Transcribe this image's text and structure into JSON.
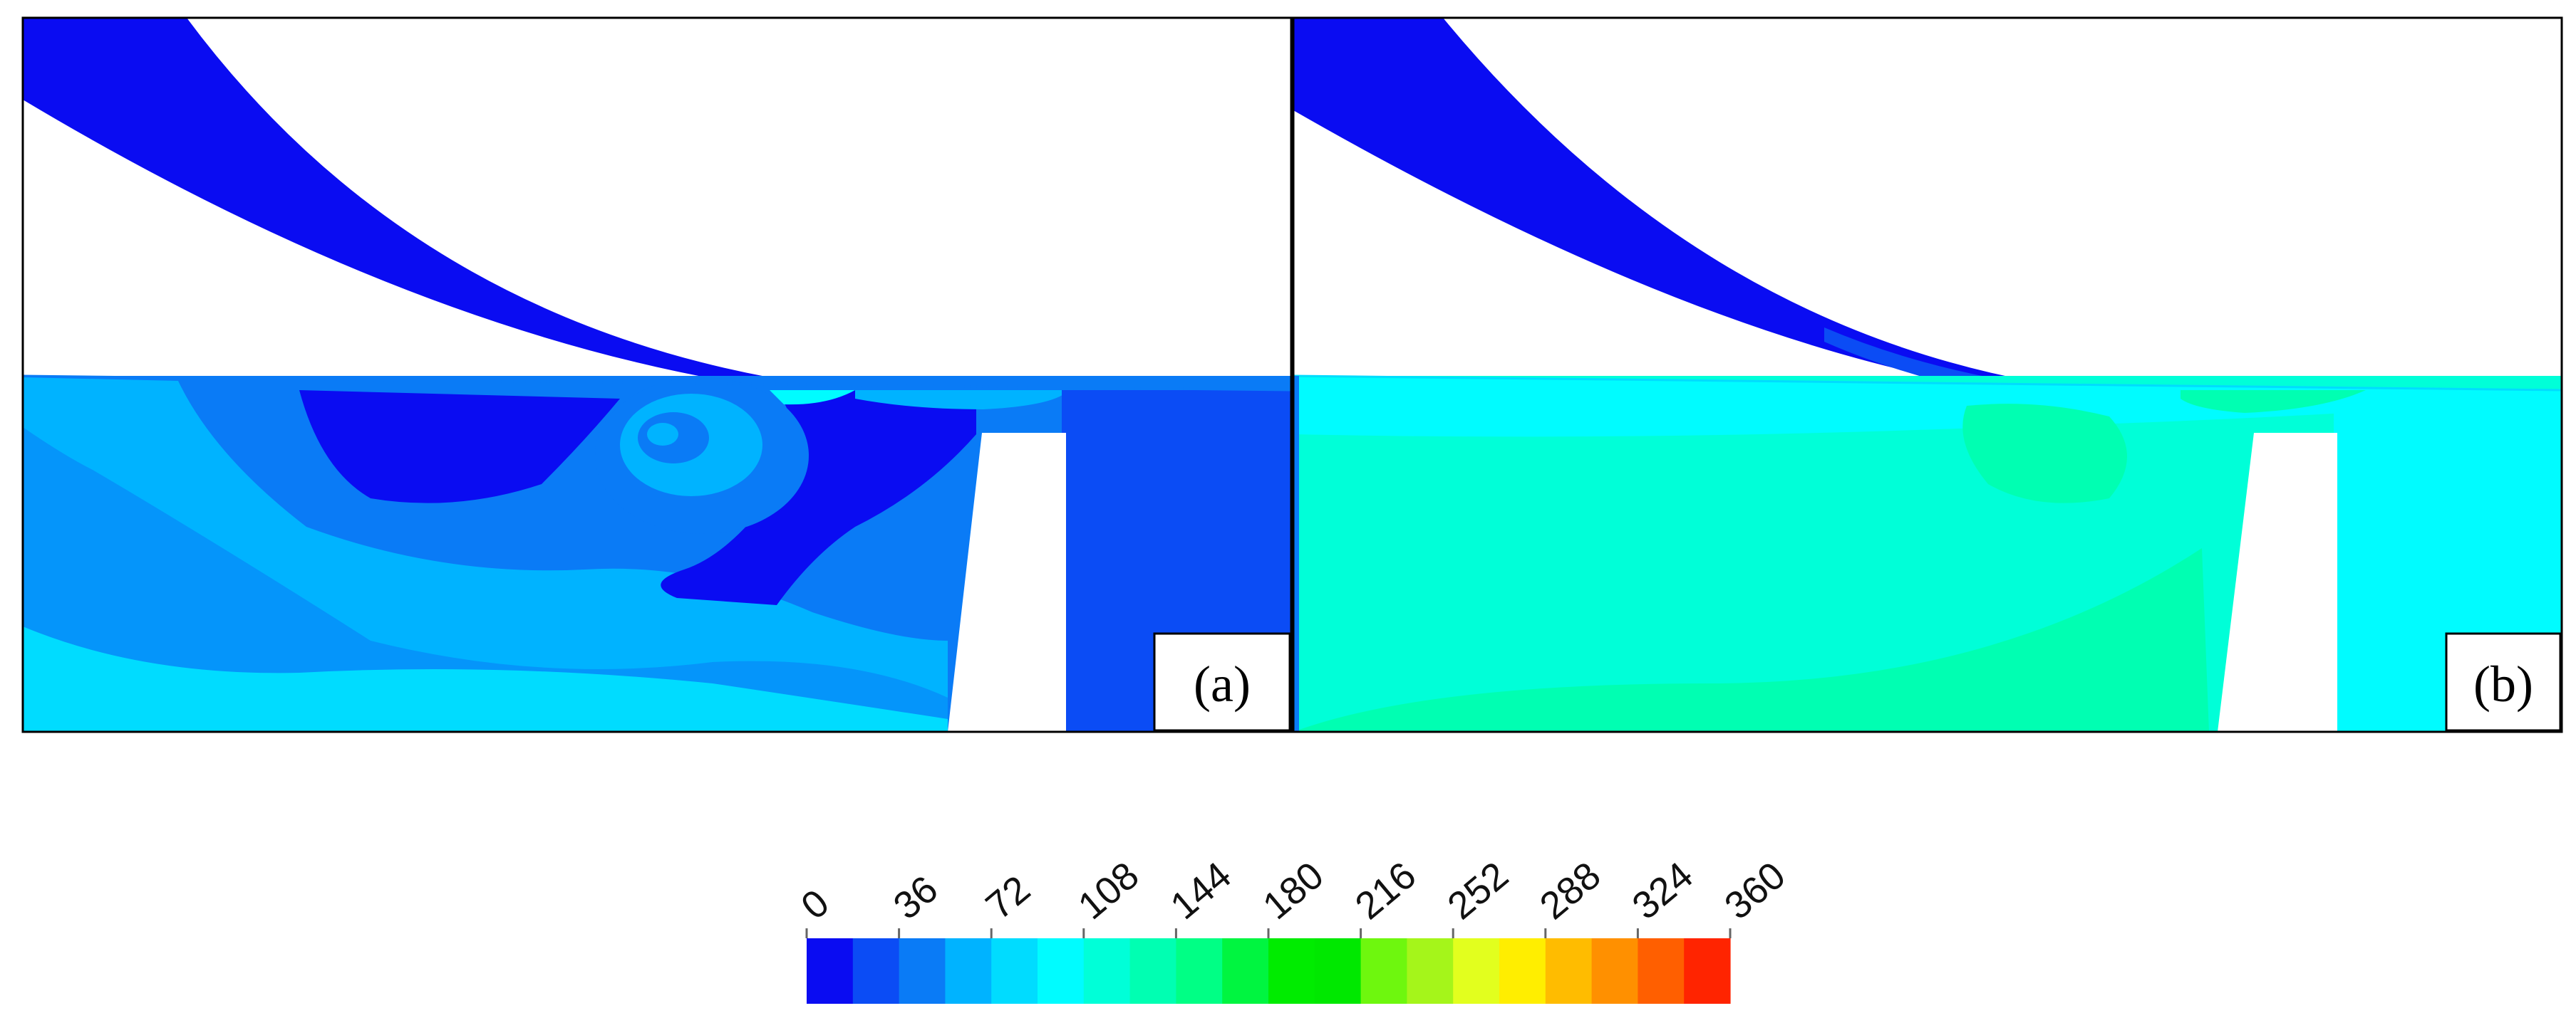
{
  "panels": [
    {
      "label": "(a)"
    },
    {
      "label": "(b)"
    }
  ],
  "colorbar": {
    "min": 0,
    "max": 360,
    "levels": 18,
    "tick_labels": [
      "0",
      "36",
      "72",
      "108",
      "144",
      "180",
      "216",
      "252",
      "288",
      "324",
      "360"
    ],
    "colors": [
      "#0a0cf2",
      "#0b4cf5",
      "#0a7bf6",
      "#00b3ff",
      "#00dcff",
      "#00fcff",
      "#00ffd8",
      "#00ffb2",
      "#00ff85",
      "#00f540",
      "#00ec00",
      "#00e800",
      "#6ef70e",
      "#a5f51a",
      "#e2ff1e",
      "#ffee00",
      "#ffbc00",
      "#ff9000",
      "#ff5f00",
      "#ff2400"
    ]
  }
}
